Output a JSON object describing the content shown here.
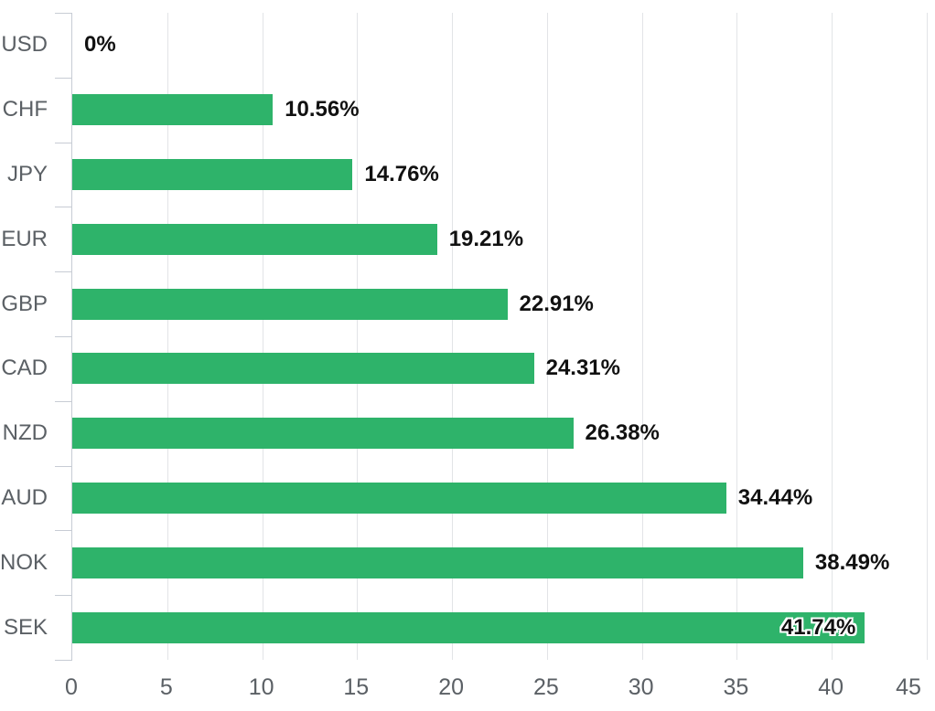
{
  "chart_data": {
    "type": "bar",
    "orientation": "horizontal",
    "title": "",
    "xlabel": "",
    "ylabel": "",
    "categories": [
      "USD",
      "CHF",
      "JPY",
      "EUR",
      "GBP",
      "CAD",
      "NZD",
      "AUD",
      "NOK",
      "SEK"
    ],
    "values": [
      0,
      10.56,
      14.76,
      19.21,
      22.91,
      24.31,
      26.38,
      34.44,
      38.49,
      41.74
    ],
    "value_labels": [
      "0%",
      "10.56%",
      "14.76%",
      "19.21%",
      "22.91%",
      "24.31%",
      "26.38%",
      "34.44%",
      "38.49%",
      "41.74%"
    ],
    "value_label_inside_for": [
      "SEK"
    ],
    "xlim": [
      0,
      45
    ],
    "x_ticks": [
      0,
      5,
      10,
      15,
      20,
      25,
      30,
      35,
      40,
      45
    ],
    "grid": true,
    "legend": "none",
    "colors": {
      "bar": "#2eb36a",
      "value_label": "#111111",
      "value_label_inside_halo": "#ffffff",
      "axis_text": "#5b6065",
      "gridline": "#e2e4e7",
      "axis_line": "#c7ccd4",
      "background": "#ffffff"
    }
  }
}
